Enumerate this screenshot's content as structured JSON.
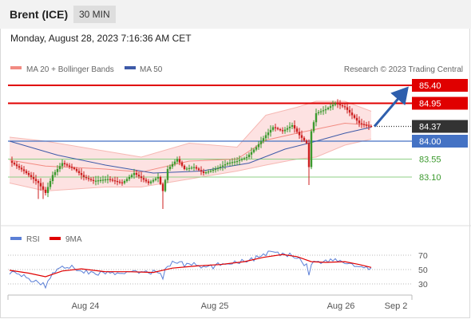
{
  "header": {
    "title": "Brent (ICE)",
    "interval": "30 MIN",
    "datetime": "Monday, August 28, 2023 7:16:36 AM CET"
  },
  "colors": {
    "resistance": "#e00000",
    "pivot": "#4472c4",
    "support": "#3c9a2e",
    "bullish": "#3c9a2e",
    "bearish": "#cc1f1f",
    "ma20": "#f28b82",
    "band_fill": "#fde2e2",
    "ma50": "#3e5aa8",
    "rsi": "#5b7fd6",
    "rsi_ma": "#e00000",
    "arrow": "#2e5fad"
  },
  "chart_data": [
    {
      "type": "candlestick",
      "legend": {
        "items": [
          {
            "label": "MA 20 + Bollinger Bands",
            "color": "#f28b82"
          },
          {
            "label": "MA 50",
            "color": "#3e5aa8"
          }
        ],
        "placement": "top-left"
      },
      "watermark": "Research © 2023 Trading Central",
      "last_price": 84.37,
      "x_ticks": [
        "Aug 24",
        "Aug 25",
        "Aug 26",
        "Sep 2"
      ],
      "levels": [
        {
          "value": 85.4,
          "label": "85.40",
          "kind": "resistance"
        },
        {
          "value": 84.95,
          "label": "84.95",
          "kind": "resistance"
        },
        {
          "value": 84.37,
          "label": "84.37",
          "kind": "last"
        },
        {
          "value": 84.0,
          "label": "84.00",
          "kind": "pivot"
        },
        {
          "value": 83.55,
          "label": "83.55",
          "kind": "support"
        },
        {
          "value": 83.1,
          "label": "83.10",
          "kind": "support"
        }
      ],
      "forecast_arrow": {
        "from": 84.37,
        "to": 85.4
      },
      "close_path": [
        [
          0,
          83.5
        ],
        [
          6,
          83.25
        ],
        [
          12,
          82.95
        ],
        [
          15,
          82.7
        ],
        [
          18,
          83.15
        ],
        [
          22,
          83.45
        ],
        [
          27,
          83.3
        ],
        [
          31,
          83.1
        ],
        [
          35,
          83.0
        ],
        [
          41,
          83.05
        ],
        [
          47,
          82.95
        ],
        [
          52,
          83.2
        ],
        [
          58,
          82.95
        ],
        [
          62,
          83.1
        ],
        [
          64,
          82.75
        ],
        [
          66,
          83.3
        ],
        [
          70,
          83.55
        ],
        [
          73,
          83.3
        ],
        [
          77,
          83.35
        ],
        [
          81,
          83.2
        ],
        [
          86,
          83.3
        ],
        [
          91,
          83.45
        ],
        [
          95,
          83.5
        ],
        [
          99,
          83.6
        ],
        [
          103,
          83.85
        ],
        [
          107,
          84.15
        ],
        [
          110,
          84.35
        ],
        [
          114,
          84.25
        ],
        [
          118,
          84.4
        ],
        [
          121,
          84.15
        ],
        [
          124,
          83.95
        ],
        [
          125,
          83.35
        ],
        [
          126,
          84.25
        ],
        [
          128,
          84.7
        ],
        [
          132,
          84.8
        ],
        [
          136,
          84.95
        ],
        [
          140,
          84.85
        ],
        [
          143,
          84.65
        ],
        [
          146,
          84.45
        ],
        [
          149,
          84.39
        ],
        [
          151,
          84.37
        ]
      ],
      "bollinger": {
        "upper": [
          [
            0,
            84.1
          ],
          [
            15,
            84.0
          ],
          [
            40,
            83.75
          ],
          [
            55,
            83.6
          ],
          [
            75,
            83.95
          ],
          [
            95,
            83.85
          ],
          [
            107,
            84.65
          ],
          [
            120,
            84.85
          ],
          [
            128,
            85.0
          ],
          [
            140,
            85.0
          ],
          [
            151,
            84.75
          ]
        ],
        "lower": [
          [
            0,
            82.95
          ],
          [
            15,
            82.75
          ],
          [
            40,
            82.85
          ],
          [
            55,
            82.85
          ],
          [
            75,
            83.05
          ],
          [
            95,
            83.25
          ],
          [
            107,
            83.4
          ],
          [
            120,
            83.55
          ],
          [
            128,
            83.6
          ],
          [
            140,
            83.9
          ],
          [
            151,
            84.05
          ]
        ]
      },
      "ma50": [
        [
          0,
          84.0
        ],
        [
          20,
          83.65
        ],
        [
          40,
          83.4
        ],
        [
          60,
          83.2
        ],
        [
          80,
          83.25
        ],
        [
          100,
          83.45
        ],
        [
          115,
          83.8
        ],
        [
          125,
          83.95
        ],
        [
          140,
          84.2
        ],
        [
          151,
          84.35
        ]
      ]
    },
    {
      "type": "line",
      "legend": {
        "items": [
          {
            "label": "RSI",
            "color": "#5b7fd6"
          },
          {
            "label": "9MA",
            "color": "#e00000"
          }
        ],
        "placement": "top-left"
      },
      "ylim": [
        20,
        80
      ],
      "y_ticks": [
        "70",
        "50",
        "30"
      ],
      "rsi_path": [
        [
          0,
          47
        ],
        [
          6,
          40
        ],
        [
          12,
          32
        ],
        [
          15,
          27
        ],
        [
          18,
          45
        ],
        [
          22,
          56
        ],
        [
          27,
          52
        ],
        [
          31,
          48
        ],
        [
          35,
          44
        ],
        [
          41,
          46
        ],
        [
          47,
          42
        ],
        [
          52,
          50
        ],
        [
          58,
          44
        ],
        [
          62,
          48
        ],
        [
          64,
          40
        ],
        [
          66,
          56
        ],
        [
          70,
          62
        ],
        [
          73,
          56
        ],
        [
          77,
          58
        ],
        [
          81,
          52
        ],
        [
          86,
          55
        ],
        [
          91,
          60
        ],
        [
          95,
          61
        ],
        [
          99,
          63
        ],
        [
          103,
          66
        ],
        [
          107,
          72
        ],
        [
          110,
          74
        ],
        [
          114,
          70
        ],
        [
          118,
          72
        ],
        [
          121,
          64
        ],
        [
          124,
          56
        ],
        [
          125,
          44
        ],
        [
          126,
          58
        ],
        [
          128,
          62
        ],
        [
          132,
          61
        ],
        [
          136,
          63
        ],
        [
          140,
          60
        ],
        [
          143,
          57
        ],
        [
          146,
          53
        ],
        [
          149,
          51
        ],
        [
          151,
          50
        ]
      ],
      "ma_path": [
        [
          0,
          49
        ],
        [
          8,
          45
        ],
        [
          15,
          40
        ],
        [
          22,
          48
        ],
        [
          30,
          51
        ],
        [
          40,
          47
        ],
        [
          50,
          47
        ],
        [
          60,
          46
        ],
        [
          68,
          52
        ],
        [
          78,
          55
        ],
        [
          88,
          57
        ],
        [
          98,
          61
        ],
        [
          106,
          67
        ],
        [
          114,
          71
        ],
        [
          120,
          68
        ],
        [
          126,
          61
        ],
        [
          132,
          60
        ],
        [
          140,
          61
        ],
        [
          146,
          57
        ],
        [
          151,
          53
        ]
      ]
    }
  ]
}
